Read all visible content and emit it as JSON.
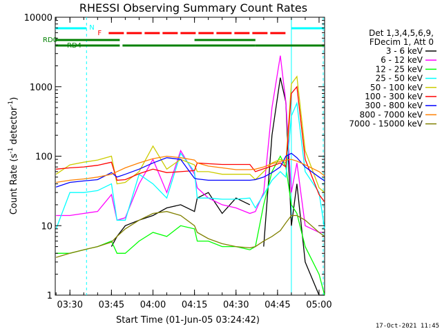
{
  "chart_data": {
    "type": "line",
    "title": "RHESSI Observing Summary Count Rates",
    "xlabel": "Start Time (01-Jun-05 03:24:42)",
    "ylabel_parts": [
      "Count Rate (s",
      "-1",
      " detector",
      "-1",
      ")"
    ],
    "ylabel": "Count Rate (s-1 detector-1)",
    "yscale": "log",
    "ylim": [
      1,
      10000
    ],
    "xlim": [
      "03:24:42",
      "05:02:00"
    ],
    "x_ticks": [
      "03:30",
      "03:45",
      "04:00",
      "04:15",
      "04:30",
      "04:45",
      "05:00"
    ],
    "y_ticks": [
      "1",
      "10",
      "100",
      "1000",
      "10000"
    ],
    "grid": false,
    "legend_header": [
      "Det 1,3,4,5,6,9,",
      "FDecim 1, Att 0"
    ],
    "legend_position": "right",
    "timestamp": "17-Oct-2021 11:45",
    "markers": [
      {
        "label": "N",
        "color": "#00ffff"
      },
      {
        "label": "F",
        "color": "#ff0000"
      },
      {
        "label": "RD0",
        "color": "#008000"
      },
      {
        "label": "RD4",
        "color": "#008000"
      }
    ],
    "x": [
      "03:25",
      "03:30",
      "03:35",
      "03:40",
      "03:45",
      "03:47",
      "03:50",
      "03:55",
      "04:00",
      "04:05",
      "04:10",
      "04:15",
      "04:16",
      "04:20",
      "04:25",
      "04:30",
      "04:35",
      "04:37",
      "04:40",
      "04:43",
      "04:46",
      "04:48",
      "04:50",
      "04:52",
      "04:55",
      "05:00",
      "05:02"
    ],
    "series": [
      {
        "name": "3 - 6 keV",
        "color": "#000000",
        "values": [
          null,
          null,
          null,
          null,
          5,
          7,
          10,
          12,
          14,
          18,
          20,
          16,
          25,
          30,
          15,
          25,
          20,
          null,
          5,
          200,
          1350,
          600,
          10,
          40,
          3,
          1,
          1
        ]
      },
      {
        "name": "6 - 12 keV",
        "color": "#ff00ff",
        "values": [
          14,
          14,
          15,
          16,
          28,
          12,
          13,
          40,
          90,
          30,
          120,
          55,
          35,
          25,
          20,
          18,
          15,
          16,
          30,
          500,
          2800,
          600,
          30,
          80,
          10,
          8,
          8
        ]
      },
      {
        "name": "12 - 25 keV",
        "color": "#00ff00",
        "values": [
          4,
          4,
          4.5,
          5,
          6,
          4,
          4,
          6,
          8,
          7,
          10,
          9,
          6,
          6,
          5,
          5,
          4.5,
          5,
          20,
          60,
          100,
          70,
          20,
          15,
          5,
          2,
          1
        ]
      },
      {
        "name": "25 - 50 keV",
        "color": "#00ffff",
        "values": [
          9,
          30,
          30,
          32,
          40,
          12,
          12,
          55,
          40,
          25,
          110,
          60,
          25,
          25,
          24,
          24,
          25,
          18,
          28,
          45,
          60,
          50,
          380,
          580,
          60,
          30,
          9
        ]
      },
      {
        "name": "50 - 100 keV",
        "color": "#cccc00",
        "values": [
          55,
          75,
          82,
          88,
          100,
          40,
          42,
          60,
          140,
          65,
          90,
          75,
          60,
          60,
          55,
          55,
          55,
          46,
          60,
          80,
          90,
          80,
          1100,
          1400,
          120,
          35,
          30
        ]
      },
      {
        "name": "100 - 300 keV",
        "color": "#ff0000",
        "values": [
          65,
          68,
          70,
          74,
          82,
          45,
          46,
          56,
          65,
          58,
          60,
          62,
          80,
          78,
          76,
          76,
          76,
          60,
          66,
          72,
          80,
          70,
          800,
          1000,
          90,
          28,
          22
        ]
      },
      {
        "name": "300 - 800 keV",
        "color": "#0000ff",
        "values": [
          36,
          42,
          44,
          46,
          58,
          50,
          55,
          65,
          80,
          95,
          90,
          48,
          47,
          45,
          45,
          45,
          45,
          46,
          50,
          58,
          70,
          100,
          110,
          95,
          70,
          50,
          44
        ]
      },
      {
        "name": "800 - 7000 keV",
        "color": "#ff8000",
        "values": [
          42,
          45,
          47,
          50,
          55,
          60,
          68,
          80,
          92,
          100,
          95,
          88,
          80,
          72,
          68,
          64,
          64,
          65,
          70,
          78,
          84,
          88,
          90,
          85,
          75,
          60,
          52
        ]
      },
      {
        "name": "7000 - 15000 keV",
        "color": "#808000",
        "values": [
          3.5,
          4,
          4.5,
          5,
          5.8,
          7,
          9,
          12,
          15,
          16,
          14,
          10,
          8,
          6.5,
          5.5,
          5,
          4.8,
          5,
          6,
          7,
          8.5,
          11,
          14,
          14,
          12,
          8,
          7
        ]
      }
    ]
  }
}
